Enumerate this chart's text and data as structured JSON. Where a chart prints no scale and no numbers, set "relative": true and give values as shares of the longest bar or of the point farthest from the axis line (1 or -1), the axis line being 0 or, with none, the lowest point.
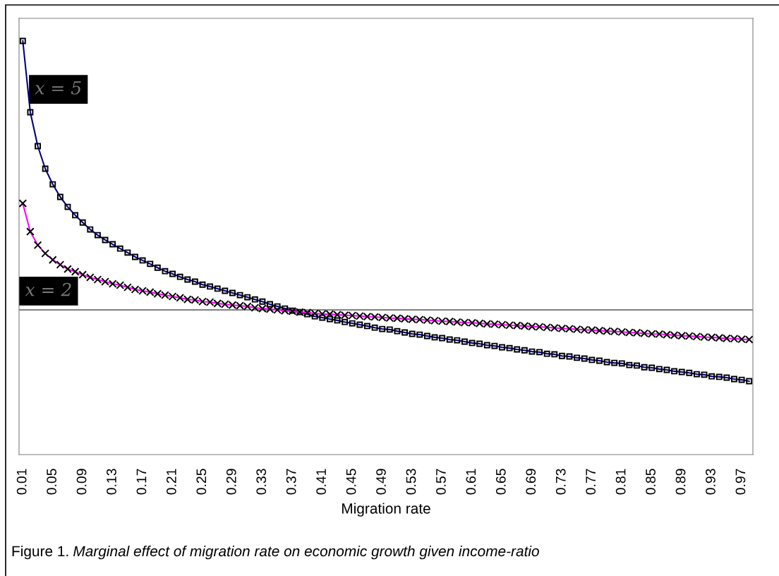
{
  "chart_data": {
    "type": "line",
    "relative": true,
    "xlabel": "Migration rate",
    "annotations": [
      "Figure 1.",
      "Marginal effect of migration rate on economic growth given income-ratio"
    ],
    "categories": [
      "0.01",
      null,
      null,
      null,
      "0.05",
      null,
      null,
      null,
      "0.09",
      null,
      null,
      null,
      "0.13",
      null,
      null,
      null,
      "0.17",
      null,
      null,
      null,
      "0.21",
      null,
      null,
      null,
      "0.25",
      null,
      null,
      null,
      "0.29",
      null,
      null,
      null,
      "0.33",
      null,
      null,
      null,
      "0.37",
      null,
      null,
      null,
      "0.41",
      null,
      null,
      null,
      "0.45",
      null,
      null,
      null,
      "0.49",
      null,
      null,
      null,
      "0.53",
      null,
      null,
      null,
      "0.57",
      null,
      null,
      null,
      "0.61",
      null,
      null,
      null,
      "0.65",
      null,
      null,
      null,
      "0.69",
      null,
      null,
      null,
      "0.73",
      null,
      null,
      null,
      "0.77",
      null,
      null,
      null,
      "0.81",
      null,
      null,
      null,
      "0.85",
      null,
      null,
      null,
      "0.89",
      null,
      null,
      null,
      "0.93",
      null,
      null,
      null,
      "0.97",
      null
    ],
    "grid": false,
    "legend": false,
    "line_style": "solid",
    "series": [
      {
        "name": "x = 5",
        "color": "#000080",
        "marker": "square",
        "values": [
          1,
          0.735,
          0.609,
          0.525,
          0.467,
          0.42,
          0.383,
          0.352,
          0.325,
          0.299,
          0.278,
          0.26,
          0.244,
          0.228,
          0.213,
          0.197,
          0.184,
          0.171,
          0.157,
          0.144,
          0.134,
          0.123,
          0.113,
          0.105,
          0.094,
          0.087,
          0.079,
          0.071,
          0.063,
          0.055,
          0.047,
          0.039,
          0.031,
          0.021,
          0.013,
          0.005,
          -0.003,
          -0.008,
          -0.016,
          -0.024,
          -0.029,
          -0.034,
          -0.039,
          -0.045,
          -0.05,
          -0.055,
          -0.06,
          -0.066,
          -0.071,
          -0.073,
          -0.079,
          -0.084,
          -0.089,
          -0.092,
          -0.097,
          -0.102,
          -0.105,
          -0.11,
          -0.113,
          -0.118,
          -0.123,
          -0.126,
          -0.131,
          -0.134,
          -0.139,
          -0.142,
          -0.147,
          -0.15,
          -0.155,
          -0.157,
          -0.163,
          -0.165,
          -0.171,
          -0.173,
          -0.178,
          -0.181,
          -0.186,
          -0.189,
          -0.194,
          -0.197,
          -0.199,
          -0.205,
          -0.207,
          -0.213,
          -0.215,
          -0.22,
          -0.223,
          -0.228,
          -0.231,
          -0.234,
          -0.239,
          -0.241,
          -0.247,
          -0.249,
          -0.252,
          -0.257,
          -0.26,
          -0.265
        ]
      },
      {
        "name": "x = 2",
        "color": "#ff00ff",
        "marker": "cross",
        "values": [
          0.396,
          0.291,
          0.241,
          0.21,
          0.186,
          0.168,
          0.152,
          0.142,
          0.131,
          0.121,
          0.113,
          0.105,
          0.097,
          0.092,
          0.084,
          0.076,
          0.071,
          0.066,
          0.06,
          0.055,
          0.05,
          0.045,
          0.039,
          0.037,
          0.031,
          0.029,
          0.024,
          0.021,
          0.018,
          0.016,
          0.013,
          0.008,
          0.005,
          0.003,
          0,
          -0.003,
          -0.005,
          -0.008,
          -0.01,
          -0.013,
          -0.015,
          -0.016,
          -0.018,
          -0.02,
          -0.021,
          -0.023,
          -0.025,
          -0.026,
          -0.028,
          -0.03,
          -0.031,
          -0.033,
          -0.035,
          -0.036,
          -0.038,
          -0.04,
          -0.042,
          -0.043,
          -0.045,
          -0.047,
          -0.048,
          -0.05,
          -0.052,
          -0.053,
          -0.055,
          -0.057,
          -0.058,
          -0.06,
          -0.062,
          -0.063,
          -0.065,
          -0.067,
          -0.069,
          -0.07,
          -0.072,
          -0.074,
          -0.075,
          -0.077,
          -0.079,
          -0.08,
          -0.082,
          -0.084,
          -0.085,
          -0.087,
          -0.089,
          -0.09,
          -0.092,
          -0.094,
          -0.096,
          -0.097,
          -0.099,
          -0.101,
          -0.102,
          -0.104,
          -0.106,
          -0.107,
          -0.109,
          -0.11
        ]
      }
    ]
  }
}
